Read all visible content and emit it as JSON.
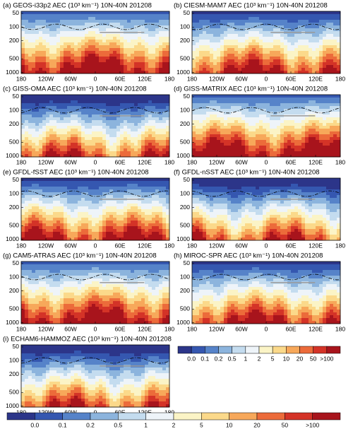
{
  "chart_data": [
    {
      "type": "contour",
      "title": "(a) GEOS-i33p2 AEC (10³ km⁻¹) 10N-40N 201208",
      "xlim": [
        -180,
        180
      ],
      "xticks": [
        {
          "value": -180,
          "label": "180"
        },
        {
          "value": -120,
          "label": "120W"
        },
        {
          "value": -60,
          "label": "60W"
        },
        0,
        {
          "value": 60,
          "label": "60E"
        },
        {
          "value": 120,
          "label": "120E"
        },
        {
          "value": 180,
          "label": "180"
        }
      ],
      "ylim": [
        45,
        1050
      ],
      "yticks": [
        50,
        100,
        200,
        500,
        1000
      ],
      "log_y": true
    },
    {
      "type": "contour",
      "title": "(b) CIESM-MAM7 AEC (10³ km⁻¹) 10N-40N 201208",
      "xlim": [
        -180,
        180
      ],
      "xticks": [
        {
          "value": -180,
          "label": "180"
        },
        {
          "value": -120,
          "label": "120W"
        },
        {
          "value": -60,
          "label": "60W"
        },
        0,
        {
          "value": 60,
          "label": "60E"
        },
        {
          "value": 120,
          "label": "120E"
        },
        {
          "value": 180,
          "label": "180"
        }
      ],
      "ylim": [
        45,
        1050
      ],
      "yticks": [
        50,
        100,
        200,
        500,
        1000
      ],
      "log_y": true
    },
    {
      "type": "contour",
      "title": "(c) GISS-OMA AEC (10³ km⁻¹) 10N-40N 201208",
      "xlim": [
        -180,
        180
      ],
      "xticks": [
        {
          "value": -180,
          "label": "180"
        },
        {
          "value": -120,
          "label": "120W"
        },
        {
          "value": -60,
          "label": "60W"
        },
        0,
        {
          "value": 60,
          "label": "60E"
        },
        {
          "value": 120,
          "label": "120E"
        },
        {
          "value": 180,
          "label": "180"
        }
      ],
      "ylim": [
        45,
        1050
      ],
      "yticks": [
        50,
        100,
        200,
        500,
        1000
      ],
      "log_y": true
    },
    {
      "type": "contour",
      "title": "(d) GISS-MATRIX AEC (10³ km⁻¹) 10N-40N 201208",
      "xlim": [
        -180,
        180
      ],
      "xticks": [
        {
          "value": -180,
          "label": "180"
        },
        {
          "value": -120,
          "label": "120W"
        },
        {
          "value": -60,
          "label": "60W"
        },
        0,
        {
          "value": 60,
          "label": "60E"
        },
        {
          "value": 120,
          "label": "120E"
        },
        {
          "value": 180,
          "label": "180"
        }
      ],
      "ylim": [
        45,
        1050
      ],
      "yticks": [
        50,
        100,
        200,
        500,
        1000
      ],
      "log_y": true
    },
    {
      "type": "contour",
      "title": "(e) GFDL-fSST AEC (10³ km⁻¹) 10N-40N 201208",
      "xlim": [
        -180,
        180
      ],
      "xticks": [
        {
          "value": -180,
          "label": "180"
        },
        {
          "value": -120,
          "label": "120W"
        },
        {
          "value": -60,
          "label": "60W"
        },
        0,
        {
          "value": 60,
          "label": "60E"
        },
        {
          "value": 120,
          "label": "120E"
        },
        {
          "value": 180,
          "label": "180"
        }
      ],
      "ylim": [
        45,
        1050
      ],
      "yticks": [
        50,
        100,
        200,
        500,
        1000
      ],
      "log_y": true
    },
    {
      "type": "contour",
      "title": "(f) GFDL-nSST AEC (10³ km⁻¹) 10N-40N 201208",
      "xlim": [
        -180,
        180
      ],
      "xticks": [
        {
          "value": -180,
          "label": "180"
        },
        {
          "value": -120,
          "label": "120W"
        },
        {
          "value": -60,
          "label": "60W"
        },
        0,
        {
          "value": 60,
          "label": "60E"
        },
        {
          "value": 120,
          "label": "120E"
        },
        {
          "value": 180,
          "label": "180"
        }
      ],
      "ylim": [
        45,
        1050
      ],
      "yticks": [
        50,
        100,
        200,
        500,
        1000
      ],
      "log_y": true
    },
    {
      "type": "contour",
      "title": "(g) CAM5-ATRAS AEC (10³ km⁻¹) 10N-40N 201208",
      "xlim": [
        -180,
        180
      ],
      "xticks": [
        {
          "value": -180,
          "label": "180"
        },
        {
          "value": -120,
          "label": "120W"
        },
        {
          "value": -60,
          "label": "60W"
        },
        0,
        {
          "value": 60,
          "label": "60E"
        },
        {
          "value": 120,
          "label": "120E"
        },
        {
          "value": 180,
          "label": "180"
        }
      ],
      "ylim": [
        45,
        1050
      ],
      "yticks": [
        50,
        100,
        200,
        500,
        1000
      ],
      "log_y": true
    },
    {
      "type": "contour",
      "title": "(h) MIROC-SPR AEC (10³ km⁻¹) 10N-40N 201208",
      "xlim": [
        -180,
        180
      ],
      "xticks": [
        {
          "value": -180,
          "label": "180"
        },
        {
          "value": -120,
          "label": "120W"
        },
        {
          "value": -60,
          "label": "60W"
        },
        0,
        {
          "value": 60,
          "label": "60E"
        },
        {
          "value": 120,
          "label": "120E"
        },
        {
          "value": 180,
          "label": "180"
        }
      ],
      "ylim": [
        45,
        1050
      ],
      "yticks": [
        50,
        100,
        200,
        500,
        1000
      ],
      "log_y": true
    },
    {
      "type": "contour",
      "title": "(i) ECHAM6-HAMMOZ AEC (10³ km⁻¹) 10N-40N 201208",
      "xlim": [
        -180,
        180
      ],
      "xticks": [
        {
          "value": -180,
          "label": "180"
        },
        {
          "value": -120,
          "label": "120W"
        },
        {
          "value": -60,
          "label": "60W"
        },
        0,
        {
          "value": 60,
          "label": "60E"
        },
        {
          "value": 120,
          "label": "120E"
        },
        {
          "value": 180,
          "label": "180"
        }
      ],
      "ylim": [
        45,
        1050
      ],
      "yticks": [
        50,
        100,
        200,
        500,
        1000
      ],
      "log_y": true
    }
  ],
  "colorbar": {
    "ticks": [
      {
        "value": 0,
        "label": "0.0"
      },
      0.1,
      0.2,
      0.5,
      1,
      2,
      5,
      10,
      20,
      50,
      {
        "value": 100,
        "label": ">100"
      }
    ],
    "colors": [
      "#2c3589",
      "#3557b0",
      "#5683c9",
      "#8cb4dd",
      "#c4dcef",
      "#eef4f9",
      "#fbf4c6",
      "#fbd98a",
      "#f7a85a",
      "#ec6b3a",
      "#d43327",
      "#a8141c"
    ]
  }
}
